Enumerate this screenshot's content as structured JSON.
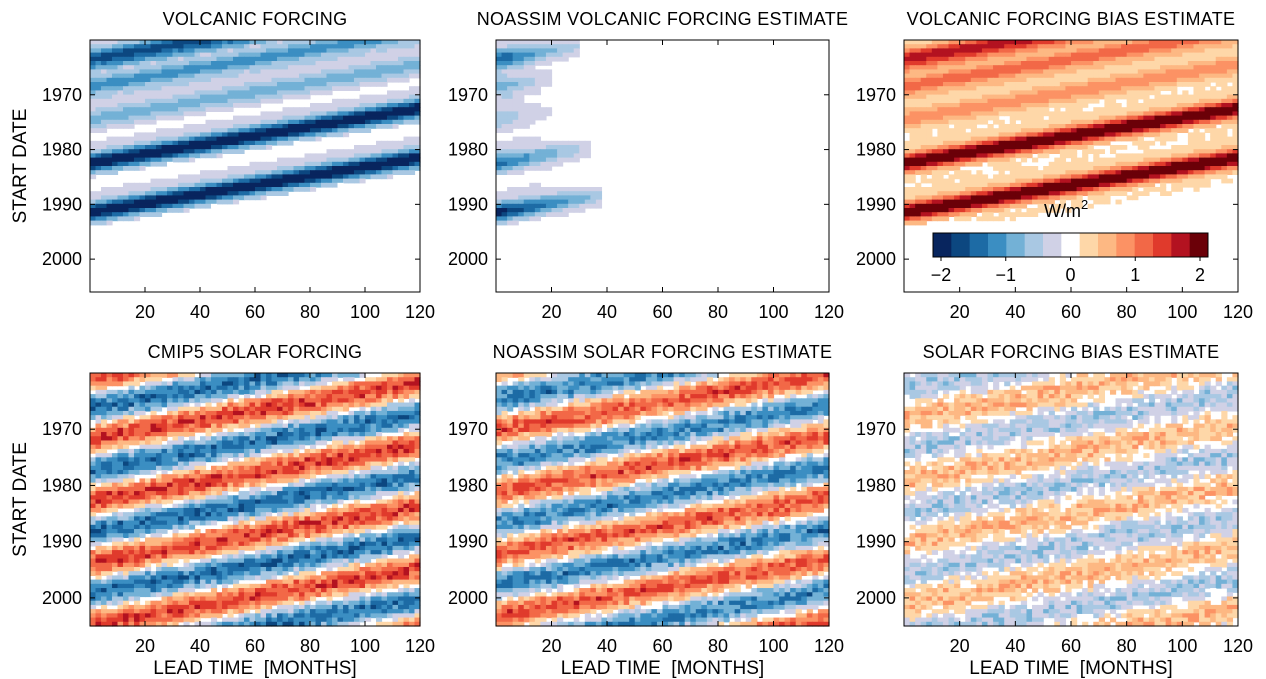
{
  "chart_data": [
    {
      "type": "heatmap",
      "title": "VOLCANIC FORCING",
      "ylabel": "START DATE",
      "xlabel": "",
      "xlim": [
        0,
        120
      ],
      "ylim": [
        1960,
        2006
      ],
      "xticks": [
        "20",
        "40",
        "60",
        "80",
        "100",
        "120"
      ],
      "yticks": [
        "1970",
        "1980",
        "1990",
        "2000"
      ],
      "bands": [
        {
          "start_date": 1963.5,
          "strength": 1.5,
          "lead_extent_months": 120
        },
        {
          "start_date": 1968.5,
          "strength": 0.9,
          "lead_extent_months": 120
        },
        {
          "start_date": 1974.5,
          "strength": 0.6,
          "lead_extent_months": 120
        },
        {
          "start_date": 1982.5,
          "strength": 2.0,
          "lead_extent_months": 120
        },
        {
          "start_date": 1991.5,
          "strength": 2.0,
          "lead_extent_months": 120
        }
      ]
    },
    {
      "type": "heatmap",
      "title": "NOASSIM VOLCANIC FORCING ESTIMATE",
      "ylabel": "",
      "xlabel": "",
      "xlim": [
        0,
        120
      ],
      "ylim": [
        1960,
        2006
      ],
      "xticks": [
        "20",
        "40",
        "60",
        "80",
        "100",
        "120"
      ],
      "yticks": [
        "1970",
        "1980",
        "1990",
        "2000"
      ],
      "bands": [
        {
          "start_date": 1963.5,
          "strength": 1.3,
          "lead_extent_months": 30
        },
        {
          "start_date": 1968.5,
          "strength": 0.8,
          "lead_extent_months": 18
        },
        {
          "start_date": 1974.5,
          "strength": 0.4,
          "lead_extent_months": 20
        },
        {
          "start_date": 1982.5,
          "strength": 1.2,
          "lead_extent_months": 32
        },
        {
          "start_date": 1991.5,
          "strength": 1.8,
          "lead_extent_months": 36
        }
      ]
    },
    {
      "type": "heatmap",
      "title": "VOLCANIC FORCING BIAS ESTIMATE",
      "ylabel": "",
      "xlabel": "",
      "xlim": [
        0,
        120
      ],
      "ylim": [
        1960,
        2006
      ],
      "xticks": [
        "20",
        "40",
        "60",
        "80",
        "100",
        "120"
      ],
      "yticks": [
        "1970",
        "1980",
        "1990",
        "2000"
      ],
      "colorbar": {
        "label_main": "W/m",
        "label_sup": "2",
        "ticks": [
          "−2",
          "−1",
          "0",
          "1",
          "2"
        ],
        "range": [
          -2,
          2
        ]
      }
    },
    {
      "type": "heatmap",
      "title": "CMIP5 SOLAR FORCING",
      "ylabel": "START DATE",
      "xlabel": "LEAD TIME  [MONTHS]",
      "xlim": [
        0,
        120
      ],
      "ylim": [
        1960,
        2005
      ],
      "xticks": [
        "20",
        "40",
        "60",
        "80",
        "100",
        "120"
      ],
      "yticks": [
        "1970",
        "1980",
        "1990",
        "2000"
      ],
      "cycle_period_years": 11,
      "amplitude": 1.0
    },
    {
      "type": "heatmap",
      "title": "NOASSIM SOLAR FORCING ESTIMATE",
      "ylabel": "",
      "xlabel": "LEAD TIME  [MONTHS]",
      "xlim": [
        0,
        120
      ],
      "ylim": [
        1960,
        2005
      ],
      "xticks": [
        "20",
        "40",
        "60",
        "80",
        "100",
        "120"
      ],
      "yticks": [
        "1970",
        "1980",
        "1990",
        "2000"
      ],
      "cycle_period_years": 11,
      "amplitude": 0.9
    },
    {
      "type": "heatmap",
      "title": "SOLAR FORCING BIAS ESTIMATE",
      "ylabel": "",
      "xlabel": "LEAD TIME  [MONTHS]",
      "xlim": [
        0,
        120
      ],
      "ylim": [
        1960,
        2005
      ],
      "xticks": [
        "20",
        "40",
        "60",
        "80",
        "100",
        "120"
      ],
      "yticks": [
        "1970",
        "1980",
        "1990",
        "2000"
      ],
      "amplitude": 0.6
    }
  ],
  "colors": {
    "scale": [
      "#08255e",
      "#0c4780",
      "#1d6ba5",
      "#3b8ec2",
      "#73b1d6",
      "#a9c8e3",
      "#d0d1e6",
      "#ffffff",
      "#fed7a8",
      "#fdb883",
      "#fc9264",
      "#f26847",
      "#e03a2c",
      "#b31220",
      "#6b0008"
    ]
  }
}
